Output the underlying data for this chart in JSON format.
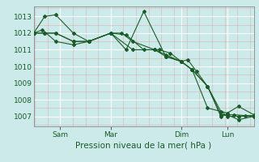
{
  "background_color": "#cceaea",
  "grid_color_major": "#ffffff",
  "grid_color_minor": "#ddaaaa",
  "line_color": "#1a5c28",
  "xlabel": "Pression niveau de la mer( hPa )",
  "ylim": [
    1006.4,
    1013.6
  ],
  "yticks": [
    1007,
    1008,
    1009,
    1010,
    1011,
    1012,
    1013
  ],
  "x_ticks_labels": [
    "Sam",
    "Mar",
    "Dim",
    "Lun"
  ],
  "x_ticks_pos": [
    0.12,
    0.35,
    0.67,
    0.88
  ],
  "xlim": [
    0.0,
    1.0
  ],
  "lines": [
    {
      "x": [
        0.0,
        0.05,
        0.1,
        0.18,
        0.25,
        0.35,
        0.42,
        0.5,
        0.57,
        0.62,
        0.67,
        0.7,
        0.74,
        0.79,
        0.85,
        0.91,
        0.96,
        1.0
      ],
      "y": [
        1012.0,
        1012.0,
        1012.0,
        1011.5,
        1011.5,
        1012.0,
        1011.9,
        1011.0,
        1011.0,
        1010.8,
        1010.3,
        1010.4,
        1009.7,
        1008.8,
        1007.1,
        1007.1,
        1007.05,
        1007.05
      ]
    },
    {
      "x": [
        0.0,
        0.05,
        0.1,
        0.18,
        0.25,
        0.35,
        0.42,
        0.5,
        0.6,
        0.67,
        0.72,
        0.79,
        0.88,
        0.93,
        1.0
      ],
      "y": [
        1012.0,
        1013.0,
        1013.1,
        1012.0,
        1011.5,
        1012.0,
        1011.0,
        1013.3,
        1010.6,
        1010.3,
        1009.8,
        1007.5,
        1007.2,
        1007.6,
        1007.1
      ]
    },
    {
      "x": [
        0.0,
        0.04,
        0.1,
        0.18,
        0.25,
        0.35,
        0.45,
        0.55,
        0.6,
        0.67,
        0.72,
        0.79,
        0.85,
        0.88,
        0.93,
        1.0
      ],
      "y": [
        1012.0,
        1012.2,
        1011.5,
        1011.3,
        1011.5,
        1012.0,
        1011.0,
        1011.0,
        1010.7,
        1010.3,
        1009.8,
        1008.8,
        1007.3,
        1007.0,
        1007.0,
        1007.0
      ]
    },
    {
      "x": [
        0.0,
        0.05,
        0.1,
        0.18,
        0.25,
        0.35,
        0.4,
        0.45,
        0.55,
        0.6,
        0.67,
        0.72,
        0.79,
        0.85,
        0.88,
        0.93,
        1.0
      ],
      "y": [
        1012.0,
        1012.0,
        1012.0,
        1011.5,
        1011.5,
        1012.0,
        1012.0,
        1011.5,
        1011.0,
        1010.6,
        1010.3,
        1009.8,
        1008.8,
        1007.0,
        1007.1,
        1006.8,
        1007.0
      ]
    }
  ]
}
